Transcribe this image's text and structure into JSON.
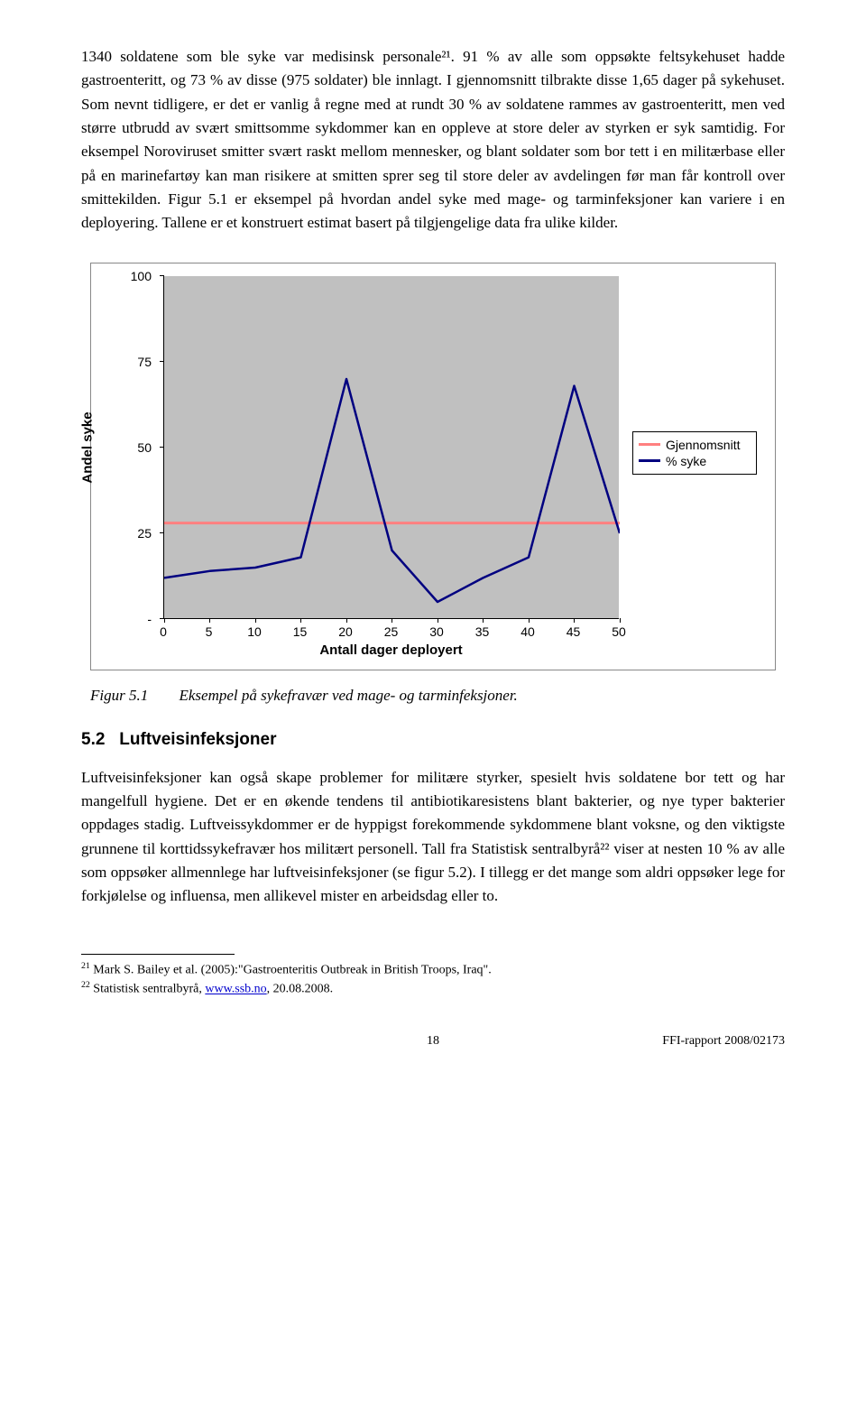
{
  "para1": "1340 soldatene som ble syke var medisinsk personale²¹. 91 % av alle som oppsøkte feltsykehuset hadde gastroenteritt, og 73 % av disse (975 soldater) ble innlagt. I gjennomsnitt tilbrakte disse 1,65 dager på sykehuset. Som nevnt tidligere, er det er vanlig å regne med at rundt 30 % av soldatene rammes av gastroenteritt, men ved større utbrudd av svært smittsomme sykdommer kan en oppleve at store deler av styrken er syk samtidig. For eksempel Noroviruset smitter svært raskt mellom mennesker, og blant soldater som bor tett i en militærbase eller på en marinefartøy kan man risikere at smitten sprer seg til store deler av avdelingen før man får kontroll over smittekilden. Figur 5.1 er eksempel på hvordan andel syke med mage- og tarminfeksjoner kan variere i en deployering. Tallene er et konstruert estimat basert på tilgjengelige data fra ulike kilder.",
  "chart": {
    "type": "line",
    "background_color": "#c0c0c0",
    "plot_area_color": "#c0c0c0",
    "axis_color": "#000000",
    "y_axis_title": "Andel syke",
    "x_axis_title": "Antall dager deployert",
    "y_ticks": [
      0,
      25,
      50,
      75,
      100
    ],
    "y_tick_labels": [
      "-",
      "25",
      "50",
      "75",
      "100"
    ],
    "x_ticks": [
      0,
      5,
      10,
      15,
      20,
      25,
      30,
      35,
      40,
      45,
      50
    ],
    "xlim": [
      0,
      50
    ],
    "ylim": [
      0,
      100
    ],
    "series": [
      {
        "name": "Gjennomsnitt",
        "color": "#ff8080",
        "width": 3,
        "points": [
          [
            0,
            28
          ],
          [
            50,
            28
          ]
        ]
      },
      {
        "name": "% syke",
        "color": "#000080",
        "width": 2.5,
        "points": [
          [
            0,
            12
          ],
          [
            5,
            14
          ],
          [
            10,
            15
          ],
          [
            15,
            18
          ],
          [
            20,
            70
          ],
          [
            25,
            20
          ],
          [
            30,
            5
          ],
          [
            35,
            12
          ],
          [
            40,
            18
          ],
          [
            45,
            68
          ],
          [
            50,
            25
          ]
        ]
      }
    ],
    "legend": [
      "Gjennomsnitt",
      "% syke"
    ],
    "axis_title_fontsize": 15,
    "tick_fontsize": 14
  },
  "caption_fig": "Figur 5.1",
  "caption_text": "Eksempel på sykefravær ved mage- og tarminfeksjoner.",
  "section_number": "5.2",
  "section_title": "Luftveisinfeksjoner",
  "para2": "Luftveisinfeksjoner kan også skape problemer for militære styrker, spesielt hvis soldatene bor tett og har mangelfull hygiene. Det er en økende tendens til antibiotikaresistens blant bakterier, og nye typer bakterier oppdages stadig. Luftveissykdommer er de hyppigst forekommende sykdommene blant voksne, og den viktigste grunnene til korttidssykefravær hos militært personell. Tall fra Statistisk sentralbyrå²² viser at nesten 10 % av alle som oppsøker allmennlege har luftveisinfeksjoner (se figur 5.2). I tillegg er det mange som aldri oppsøker lege for forkjølelse og influensa, men allikevel mister en arbeidsdag eller to.",
  "fn1_num": "21",
  "fn1_text": " Mark S. Bailey et al. (2005):\"Gastroenteritis Outbreak in British Troops, Iraq\".",
  "fn2_num": "22",
  "fn2_text_a": " Statistisk sentralbyrå, ",
  "fn2_link": "www.ssb.no",
  "fn2_text_b": ", 20.08.2008.",
  "page_number": "18",
  "report_id": "FFI-rapport 2008/02173"
}
